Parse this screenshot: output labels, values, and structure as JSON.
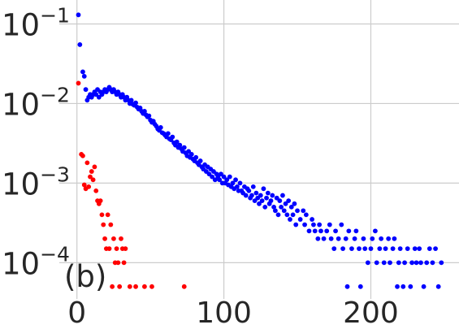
{
  "chart_data": {
    "type": "scatter",
    "panel_label": "(b)",
    "title": "",
    "xlabel": "",
    "ylabel": "",
    "x_scale": "linear",
    "y_scale": "log",
    "xlim": [
      -12,
      260
    ],
    "ylim": [
      3.5e-05,
      0.2
    ],
    "x_ticks": [
      0,
      100,
      200
    ],
    "x_tick_labels": [
      "0",
      "100",
      "200"
    ],
    "y_ticks": [
      0.0001,
      0.001,
      0.01,
      0.1
    ],
    "y_tick_labels": [
      {
        "base": "10",
        "exp": "−4"
      },
      {
        "base": "10",
        "exp": "−3"
      },
      {
        "base": "10",
        "exp": "−2"
      },
      {
        "base": "10",
        "exp": "−1"
      }
    ],
    "grid": true,
    "legend": "none",
    "series": [
      {
        "color": "#0000ff",
        "points": [
          [
            1,
            0.13
          ],
          [
            2,
            0.055
          ],
          [
            4,
            0.025
          ],
          [
            5,
            0.022
          ],
          [
            6,
            0.015
          ],
          [
            7,
            0.011
          ],
          [
            8,
            0.012
          ],
          [
            9,
            0.013
          ],
          [
            10,
            0.012
          ],
          [
            11,
            0.013
          ],
          [
            12,
            0.014
          ],
          [
            13,
            0.013
          ],
          [
            14,
            0.015
          ],
          [
            15,
            0.012
          ],
          [
            16,
            0.014
          ],
          [
            17,
            0.013
          ],
          [
            18,
            0.014
          ],
          [
            19,
            0.015
          ],
          [
            20,
            0.014
          ],
          [
            21,
            0.015
          ],
          [
            22,
            0.016
          ],
          [
            23,
            0.015
          ],
          [
            24,
            0.014
          ],
          [
            25,
            0.015
          ],
          [
            26,
            0.014
          ],
          [
            27,
            0.013
          ],
          [
            28,
            0.014
          ],
          [
            29,
            0.013
          ],
          [
            30,
            0.012
          ],
          [
            31,
            0.013
          ],
          [
            32,
            0.012
          ],
          [
            33,
            0.011
          ],
          [
            34,
            0.012
          ],
          [
            35,
            0.011
          ],
          [
            36,
            0.01
          ],
          [
            37,
            0.011
          ],
          [
            38,
            0.0098
          ],
          [
            39,
            0.0095
          ],
          [
            40,
            0.0102
          ],
          [
            41,
            0.009
          ],
          [
            42,
            0.0085
          ],
          [
            43,
            0.0088
          ],
          [
            44,
            0.008
          ],
          [
            45,
            0.0075
          ],
          [
            46,
            0.008
          ],
          [
            47,
            0.0072
          ],
          [
            48,
            0.0068
          ],
          [
            49,
            0.007
          ],
          [
            50,
            0.0062
          ],
          [
            51,
            0.0058
          ],
          [
            52,
            0.006
          ],
          [
            53,
            0.0055
          ],
          [
            54,
            0.0052
          ],
          [
            55,
            0.0048
          ],
          [
            56,
            0.0046
          ],
          [
            57,
            0.005
          ],
          [
            58,
            0.0043
          ],
          [
            59,
            0.0042
          ],
          [
            60,
            0.004
          ],
          [
            61,
            0.0038
          ],
          [
            62,
            0.0042
          ],
          [
            63,
            0.0036
          ],
          [
            64,
            0.0035
          ],
          [
            65,
            0.0038
          ],
          [
            66,
            0.0032
          ],
          [
            67,
            0.003
          ],
          [
            68,
            0.0033
          ],
          [
            69,
            0.0028
          ],
          [
            70,
            0.003
          ],
          [
            71,
            0.0027
          ],
          [
            72,
            0.0025
          ],
          [
            73,
            0.0028
          ],
          [
            74,
            0.0024
          ],
          [
            75,
            0.0022
          ],
          [
            76,
            0.0025
          ],
          [
            77,
            0.0021
          ],
          [
            78,
            0.0023
          ],
          [
            79,
            0.002
          ],
          [
            80,
            0.0019
          ],
          [
            81,
            0.0021
          ],
          [
            82,
            0.0018
          ],
          [
            83,
            0.0017
          ],
          [
            84,
            0.0019
          ],
          [
            85,
            0.0016
          ],
          [
            86,
            0.0015
          ],
          [
            87,
            0.0017
          ],
          [
            88,
            0.0014
          ],
          [
            89,
            0.0016
          ],
          [
            90,
            0.0013
          ],
          [
            91,
            0.0015
          ],
          [
            92,
            0.0012
          ],
          [
            93,
            0.0014
          ],
          [
            94,
            0.0011
          ],
          [
            95,
            0.0013
          ],
          [
            96,
            0.0012
          ],
          [
            97,
            0.0011
          ],
          [
            98,
            0.0013
          ],
          [
            99,
            0.001
          ],
          [
            100,
            0.0012
          ],
          [
            101,
            0.001
          ],
          [
            102,
            0.0011
          ],
          [
            103,
            0.00095
          ],
          [
            104,
            0.0012
          ],
          [
            105,
            0.0009
          ],
          [
            106,
            0.001
          ],
          [
            107,
            0.00085
          ],
          [
            108,
            0.0011
          ],
          [
            109,
            0.0009
          ],
          [
            110,
            0.0008
          ],
          [
            111,
            0.001
          ],
          [
            112,
            0.0008
          ],
          [
            113,
            0.00075
          ],
          [
            114,
            0.0009
          ],
          [
            115,
            0.0007
          ],
          [
            116,
            0.00085
          ],
          [
            117,
            0.0008
          ],
          [
            118,
            0.00065
          ],
          [
            119,
            0.0007
          ],
          [
            120,
            0.0009
          ],
          [
            121,
            0.0006
          ],
          [
            122,
            0.00075
          ],
          [
            123,
            0.00065
          ],
          [
            124,
            0.00055
          ],
          [
            125,
            0.0007
          ],
          [
            126,
            0.0006
          ],
          [
            127,
            0.00085
          ],
          [
            128,
            0.0005
          ],
          [
            129,
            0.00065
          ],
          [
            130,
            0.00075
          ],
          [
            131,
            0.00055
          ],
          [
            132,
            0.0006
          ],
          [
            133,
            0.0007
          ],
          [
            134,
            0.0005
          ],
          [
            135,
            0.00045
          ],
          [
            136,
            0.00065
          ],
          [
            137,
            0.0004
          ],
          [
            138,
            0.0006
          ],
          [
            139,
            0.0005
          ],
          [
            140,
            0.0007
          ],
          [
            141,
            0.00045
          ],
          [
            142,
            0.00055
          ],
          [
            143,
            0.0004
          ],
          [
            144,
            0.0006
          ],
          [
            145,
            0.00035
          ],
          [
            146,
            0.0005
          ],
          [
            147,
            0.0004
          ],
          [
            148,
            0.00055
          ],
          [
            149,
            0.0003
          ],
          [
            150,
            0.00045
          ],
          [
            152,
            0.00035
          ],
          [
            154,
            0.00045
          ],
          [
            155,
            0.0003
          ],
          [
            156,
            0.0004
          ],
          [
            158,
            0.00025
          ],
          [
            160,
            0.00035
          ],
          [
            161,
            0.0003
          ],
          [
            162,
            0.00025
          ],
          [
            164,
            0.0002
          ],
          [
            165,
            0.0003
          ],
          [
            166,
            0.00025
          ],
          [
            168,
            0.0002
          ],
          [
            170,
            0.00025
          ],
          [
            172,
            0.0003
          ],
          [
            173,
            0.0002
          ],
          [
            175,
            0.00015
          ],
          [
            176,
            0.00025
          ],
          [
            178,
            0.0002
          ],
          [
            180,
            0.0003
          ],
          [
            181,
            0.00015
          ],
          [
            183,
            0.0002
          ],
          [
            184,
            5e-05
          ],
          [
            185,
            0.00025
          ],
          [
            187,
            0.00015
          ],
          [
            189,
            0.0002
          ],
          [
            190,
            0.00025
          ],
          [
            192,
            0.00015
          ],
          [
            193,
            5e-05
          ],
          [
            195,
            0.0002
          ],
          [
            196,
            0.00015
          ],
          [
            198,
            0.0001
          ],
          [
            200,
            0.00015
          ],
          [
            201,
            0.0002
          ],
          [
            203,
            0.00025
          ],
          [
            204,
            0.0001
          ],
          [
            206,
            0.00015
          ],
          [
            207,
            0.0002
          ],
          [
            209,
            0.0001
          ],
          [
            210,
            0.00015
          ],
          [
            212,
            0.0002
          ],
          [
            213,
            0.0001
          ],
          [
            215,
            0.00015
          ],
          [
            216,
            0.0002
          ],
          [
            218,
            5e-05
          ],
          [
            219,
            0.0001
          ],
          [
            220,
            0.00015
          ],
          [
            222,
            5e-05
          ],
          [
            223,
            0.0001
          ],
          [
            225,
            0.00015
          ],
          [
            227,
            5e-05
          ],
          [
            228,
            0.0001
          ],
          [
            230,
            0.00015
          ],
          [
            231,
            0.0001
          ],
          [
            233,
            0.00015
          ],
          [
            234,
            0.0001
          ],
          [
            236,
            5e-05
          ],
          [
            238,
            0.0001
          ],
          [
            240,
            0.00015
          ],
          [
            242,
            0.0001
          ],
          [
            244,
            0.00015
          ],
          [
            246,
            5e-05
          ],
          [
            248,
            0.0001
          ]
        ]
      },
      {
        "color": "#ff0000",
        "points": [
          [
            1,
            0.018
          ],
          [
            3,
            0.0023
          ],
          [
            4,
            0.0022
          ],
          [
            5,
            0.00095
          ],
          [
            6,
            0.00085
          ],
          [
            7,
            0.0018
          ],
          [
            8,
            0.0009
          ],
          [
            9,
            0.0012
          ],
          [
            10,
            0.0014
          ],
          [
            11,
            0.0011
          ],
          [
            12,
            0.0016
          ],
          [
            13,
            0.0008
          ],
          [
            14,
            0.0006
          ],
          [
            15,
            0.00055
          ],
          [
            16,
            0.0006
          ],
          [
            17,
            0.0004
          ],
          [
            18,
            0.0003
          ],
          [
            19,
            0.0002
          ],
          [
            20,
            0.00015
          ],
          [
            21,
            0.0004
          ],
          [
            22,
            0.00015
          ],
          [
            23,
            0.0003
          ],
          [
            24,
            5e-05
          ],
          [
            25,
            0.0002
          ],
          [
            26,
            0.0001
          ],
          [
            27,
            0.00015
          ],
          [
            28,
            0.0001
          ],
          [
            29,
            5e-05
          ],
          [
            30,
            0.0002
          ],
          [
            31,
            0.00015
          ],
          [
            32,
            0.0001
          ],
          [
            33,
            0.00015
          ],
          [
            36,
            5e-05
          ],
          [
            40,
            5e-05
          ],
          [
            46,
            5e-05
          ],
          [
            51,
            5e-05
          ],
          [
            73,
            5e-05
          ]
        ]
      }
    ]
  }
}
